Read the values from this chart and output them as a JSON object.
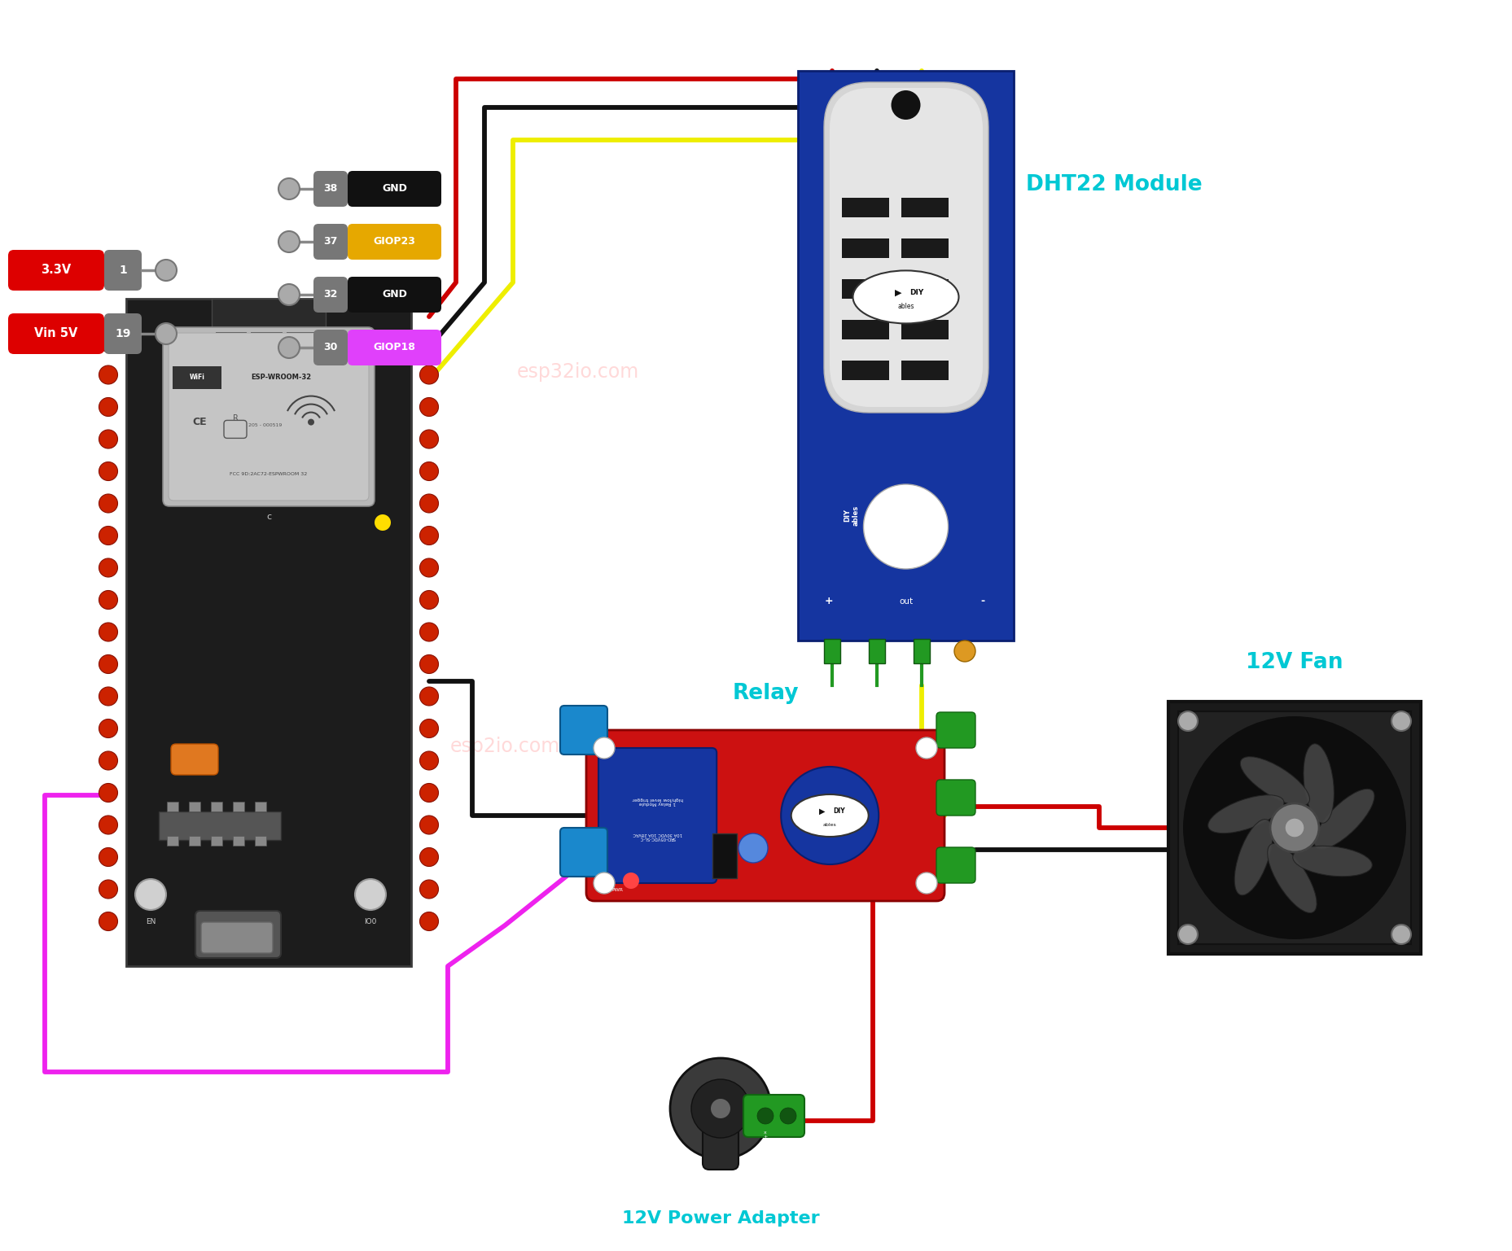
{
  "bg_color": "#ffffff",
  "pin_labels_left": [
    {
      "label": "3.3V",
      "pin": "1",
      "bg": "#dd0000",
      "text_color": "#ffffff"
    },
    {
      "label": "Vin 5V",
      "pin": "19",
      "bg": "#dd0000",
      "text_color": "#ffffff"
    }
  ],
  "pin_labels_right": [
    {
      "pin": "38",
      "label": "GND",
      "bg": "#111111",
      "text_color": "#ffffff"
    },
    {
      "pin": "37",
      "label": "GIOP23",
      "bg": "#e6a800",
      "text_color": "#ffffff"
    },
    {
      "pin": "32",
      "label": "GND",
      "bg": "#111111",
      "text_color": "#ffffff"
    },
    {
      "pin": "30",
      "label": "GIOP18",
      "bg": "#e040fb",
      "text_color": "#ffffff"
    }
  ],
  "component_labels": {
    "dht22": "DHT22 Module",
    "relay": "Relay",
    "fan": "12V Fan",
    "power": "12V Power Adapter"
  },
  "label_color": "#00c8d4",
  "wire_colors": {
    "red": "#cc0000",
    "black": "#111111",
    "yellow": "#eeee00",
    "magenta": "#ee22ee"
  },
  "watermark_color": "#ffbbbb",
  "watermark_alpha": 0.55
}
